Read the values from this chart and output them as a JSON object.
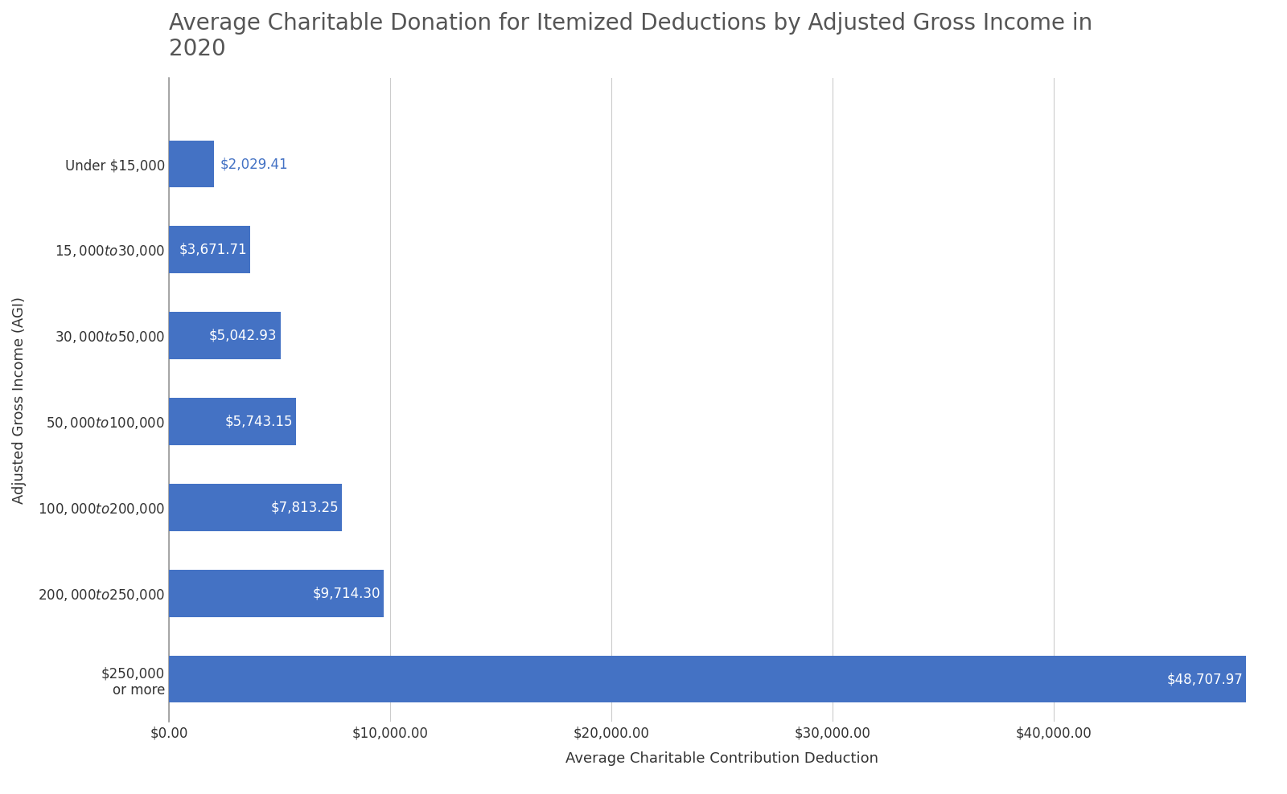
{
  "title": "Average Charitable Donation for Itemized Deductions by Adjusted Gross Income in\n2020",
  "xlabel": "Average Charitable Contribution Deduction",
  "ylabel": "Adjusted Gross Income (AGI)",
  "categories": [
    "$250,000\nor more",
    "$200,000 to $250,000",
    "$100,000 to $200,000",
    "$50,000 to $100,000",
    "$30,000 to $50,000",
    "$15,000 to $30,000",
    "Under $15,000"
  ],
  "values": [
    48707.97,
    9714.3,
    7813.25,
    5743.15,
    5042.93,
    3671.71,
    2029.41
  ],
  "bar_color": "#4472C4",
  "label_color_inside": "#FFFFFF",
  "label_color_outside": "#4472C4",
  "title_color": "#555555",
  "axis_label_color": "#333333",
  "tick_label_color": "#333333",
  "background_color": "#FFFFFF",
  "grid_color": "#CCCCCC",
  "xlim": [
    0,
    50000
  ],
  "xtick_max": 40000,
  "xtick_step": 10000,
  "title_fontsize": 20,
  "axis_label_fontsize": 13,
  "tick_fontsize": 12,
  "bar_label_fontsize": 12,
  "label_threshold": 3000
}
